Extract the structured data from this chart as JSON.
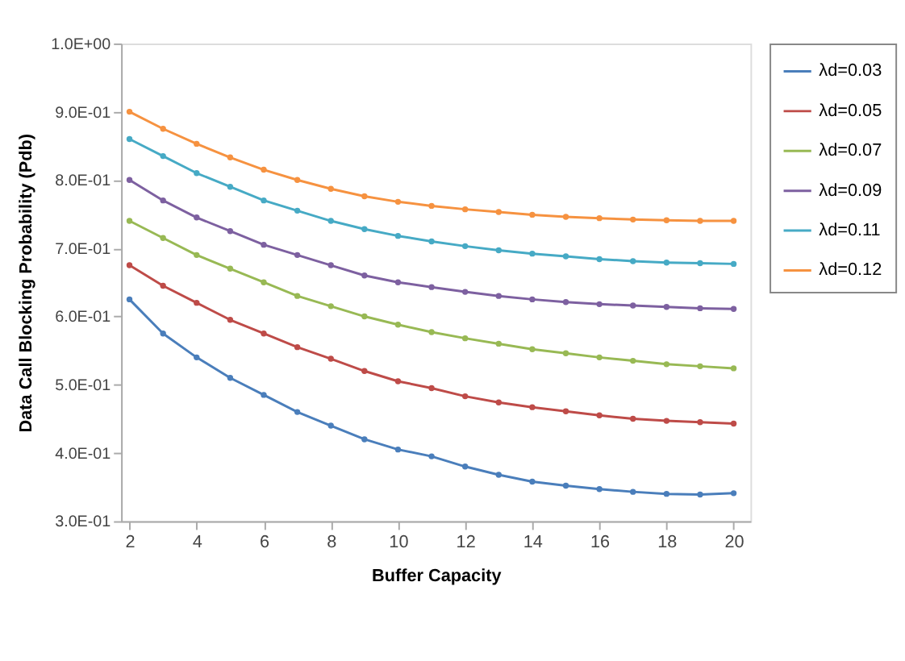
{
  "chart_data": {
    "type": "line",
    "xlabel": "Buffer Capacity",
    "ylabel": "Data Call Blocking Probability (Pdb)",
    "x": [
      2,
      3,
      4,
      5,
      6,
      7,
      8,
      9,
      10,
      11,
      12,
      13,
      14,
      15,
      16,
      17,
      18,
      19,
      20
    ],
    "xlim": [
      1.75,
      20.5
    ],
    "xticks": [
      2,
      4,
      6,
      8,
      10,
      12,
      14,
      16,
      18,
      20
    ],
    "ylim": [
      0.3,
      1.0
    ],
    "yticks": [
      {
        "value": 0.3,
        "label": "3.0E-01"
      },
      {
        "value": 0.4,
        "label": "4.0E-01"
      },
      {
        "value": 0.5,
        "label": "5.0E-01"
      },
      {
        "value": 0.6,
        "label": "6.0E-01"
      },
      {
        "value": 0.7,
        "label": "7.0E-01"
      },
      {
        "value": 0.8,
        "label": "8.0E-01"
      },
      {
        "value": 0.9,
        "label": "9.0E-01"
      },
      {
        "value": 1.0,
        "label": "1.0E+00"
      }
    ],
    "grid": false,
    "legend": "top right",
    "marker": "circle",
    "line_style": "solid",
    "series": [
      {
        "name": "λd=0.03",
        "color": "#4a7ebb",
        "values": [
          0.625,
          0.575,
          0.54,
          0.51,
          0.485,
          0.46,
          0.44,
          0.42,
          0.405,
          0.395,
          0.38,
          0.368,
          0.358,
          0.352,
          0.347,
          0.343,
          0.34,
          0.339,
          0.341
        ]
      },
      {
        "name": "λd=0.05",
        "color": "#be4b48",
        "values": [
          0.675,
          0.645,
          0.62,
          0.595,
          0.575,
          0.555,
          0.538,
          0.52,
          0.505,
          0.495,
          0.483,
          0.474,
          0.467,
          0.461,
          0.455,
          0.45,
          0.447,
          0.445,
          0.443
        ]
      },
      {
        "name": "λd=0.07",
        "color": "#98b954",
        "values": [
          0.74,
          0.715,
          0.69,
          0.67,
          0.65,
          0.63,
          0.615,
          0.6,
          0.588,
          0.577,
          0.568,
          0.56,
          0.552,
          0.546,
          0.54,
          0.535,
          0.53,
          0.527,
          0.524
        ]
      },
      {
        "name": "λd=0.09",
        "color": "#7d60a0",
        "values": [
          0.8,
          0.77,
          0.745,
          0.725,
          0.705,
          0.69,
          0.675,
          0.66,
          0.65,
          0.643,
          0.636,
          0.63,
          0.625,
          0.621,
          0.618,
          0.616,
          0.614,
          0.612,
          0.611
        ]
      },
      {
        "name": "λd=0.11",
        "color": "#46aac5",
        "values": [
          0.86,
          0.835,
          0.81,
          0.79,
          0.77,
          0.755,
          0.74,
          0.728,
          0.718,
          0.71,
          0.703,
          0.697,
          0.692,
          0.688,
          0.684,
          0.681,
          0.679,
          0.678,
          0.677
        ]
      },
      {
        "name": "λd=0.12",
        "color": "#f69240",
        "values": [
          0.9,
          0.875,
          0.853,
          0.833,
          0.815,
          0.8,
          0.787,
          0.776,
          0.768,
          0.762,
          0.757,
          0.753,
          0.749,
          0.746,
          0.744,
          0.742,
          0.741,
          0.74,
          0.74
        ]
      }
    ]
  }
}
